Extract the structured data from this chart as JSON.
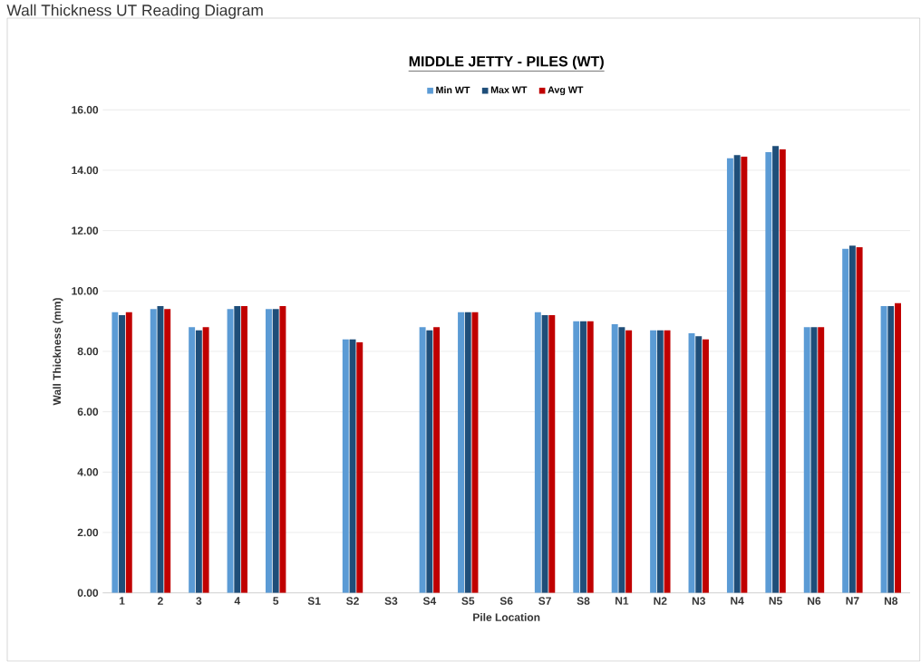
{
  "chart_data": {
    "type": "bar",
    "title": "MIDDLE JETTY - PILES (WT)",
    "xlabel": "Pile Location",
    "ylabel": "Wall Thickness (mm)",
    "annotations": [
      "Wall Thickness UT Reading Diagram"
    ],
    "categories": [
      "1",
      "2",
      "3",
      "4",
      "5",
      "S1",
      "S2",
      "S3",
      "S4",
      "S5",
      "S6",
      "S7",
      "S8",
      "N1",
      "N2",
      "N3",
      "N4",
      "N5",
      "N6",
      "N7",
      "N8"
    ],
    "series": [
      {
        "name": "Min WT",
        "color": "#5b9bd5",
        "values": [
          9.3,
          9.4,
          8.8,
          9.4,
          9.4,
          null,
          8.4,
          null,
          8.8,
          9.3,
          null,
          9.3,
          9.0,
          8.9,
          8.7,
          8.6,
          14.4,
          14.6,
          8.8,
          11.4,
          9.5
        ]
      },
      {
        "name": "Max WT",
        "color": "#1f4e79",
        "values": [
          9.2,
          9.5,
          8.7,
          9.5,
          9.4,
          null,
          8.4,
          null,
          8.7,
          9.3,
          null,
          9.2,
          9.0,
          8.8,
          8.7,
          8.5,
          14.5,
          14.8,
          8.8,
          11.5,
          9.5
        ]
      },
      {
        "name": "Avg WT",
        "color": "#c00000",
        "values": [
          9.3,
          9.4,
          8.8,
          9.5,
          9.5,
          null,
          8.3,
          null,
          8.8,
          9.3,
          null,
          9.2,
          9.0,
          8.7,
          8.7,
          8.4,
          14.45,
          14.7,
          8.8,
          11.45,
          9.6
        ]
      }
    ],
    "ylim": [
      0,
      16
    ],
    "yticks": [
      {
        "value": 0,
        "label": "0.00"
      },
      {
        "value": 2,
        "label": "2.00"
      },
      {
        "value": 4,
        "label": "4.00"
      },
      {
        "value": 6,
        "label": "6.00"
      },
      {
        "value": 8,
        "label": "8.00"
      },
      {
        "value": 10,
        "label": "10.00"
      },
      {
        "value": 12,
        "label": "12.00"
      },
      {
        "value": 14,
        "label": "14.00"
      },
      {
        "value": 16,
        "label": "16.00"
      }
    ],
    "grid": "y",
    "legend": "top"
  }
}
